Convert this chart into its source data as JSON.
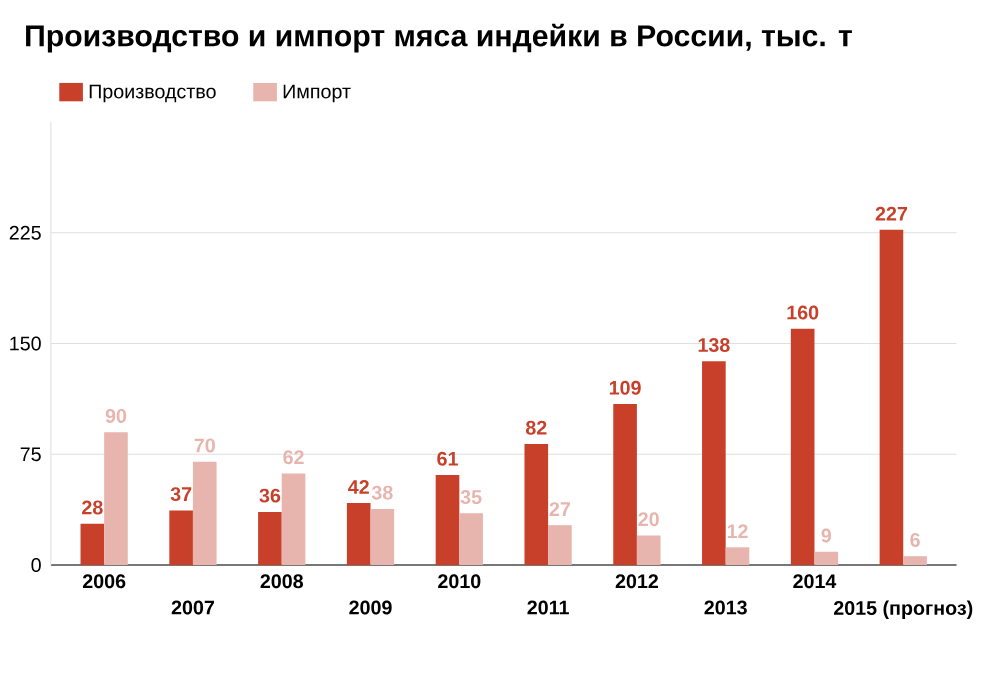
{
  "chart_data": {
    "type": "bar",
    "title": "Производство и импорт мяса индейки в России, тыс. т",
    "categories": [
      "2006",
      "2007",
      "2008",
      "2009",
      "2010",
      "2011",
      "2012",
      "2013",
      "2014",
      "2015 (прогноз)"
    ],
    "series": [
      {
        "name": "Производство",
        "color": "#c8402a",
        "values": [
          28,
          37,
          36,
          42,
          61,
          82,
          109,
          138,
          160,
          227
        ]
      },
      {
        "name": "Импорт",
        "color": "#e8b5ae",
        "values": [
          90,
          70,
          62,
          38,
          35,
          27,
          20,
          12,
          9,
          6
        ]
      }
    ],
    "ylim": [
      0,
      300
    ],
    "yticks": [
      0,
      75,
      150,
      225
    ],
    "grid": "y",
    "legend": "top left",
    "data_labels": true
  }
}
